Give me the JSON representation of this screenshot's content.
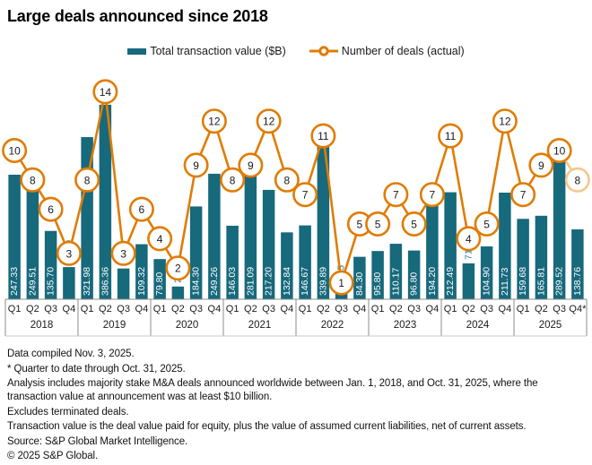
{
  "title": "Large deals announced since 2018",
  "legend": {
    "bar_label": "Total transaction value ($B)",
    "line_label": "Number of deals (actual)"
  },
  "colors": {
    "teal": "#17697C",
    "teal_text": "#2A7D96",
    "orange": "#E07C04",
    "orange_faded": "#F4C78A",
    "axis_line": "#8C8C8C",
    "axis_bottom_line": "#C8C8C8",
    "axis_text": "#1A1A1A",
    "bar_value_text": "#FFFFFF",
    "marker_number_text": "#1A1A1A"
  },
  "chart_data": {
    "type": "bar",
    "title": "Large deals announced since 2018",
    "xlabel": "",
    "ylabel": "",
    "value_axis_hidden": true,
    "grid": false,
    "legend_position": "top-center",
    "years": [
      "2018",
      "2019",
      "2020",
      "2021",
      "2022",
      "2023",
      "2024",
      "2025"
    ],
    "quarters": [
      "Q1",
      "Q2",
      "Q3",
      "Q4"
    ],
    "final_quarter_label": "Q4*",
    "final_point_provisional": true,
    "series": [
      {
        "name": "Total transaction value ($B)",
        "type": "bar",
        "values": [
          247.33,
          249.51,
          135.7,
          63.89,
          321.98,
          386.36,
          61.06,
          109.32,
          79.8,
          25.28,
          184.3,
          249.26,
          146.03,
          281.09,
          217.2,
          132.84,
          146.67,
          339.89,
          13.85,
          84.3,
          95.8,
          110.17,
          96.8,
          194.2,
          212.49,
          71.2,
          104.9,
          211.73,
          159.68,
          165.81,
          289.52,
          138.76
        ]
      },
      {
        "name": "Number of deals (actual)",
        "type": "line",
        "values": [
          10,
          8,
          6,
          3,
          8,
          14,
          3,
          6,
          4,
          2,
          9,
          12,
          8,
          9,
          12,
          8,
          7,
          11,
          1,
          5,
          5,
          7,
          5,
          7,
          11,
          4,
          5,
          12,
          7,
          9,
          10,
          8
        ]
      }
    ]
  },
  "footnotes": [
    "Data compiled Nov. 3, 2025.",
    "* Quarter to date through Oct. 31, 2025.",
    "Analysis includes majority stake M&A deals announced worldwide between Jan. 1, 2018, and Oct. 31, 2025, where the transaction value at announcement was at least $10 billion.",
    "Excludes terminated deals.",
    "Transaction value is the deal value paid for equity, plus the value of assumed current liabilities, net of current assets.",
    "Source: S&P Global Market Intelligence.",
    "© 2025 S&P Global."
  ]
}
